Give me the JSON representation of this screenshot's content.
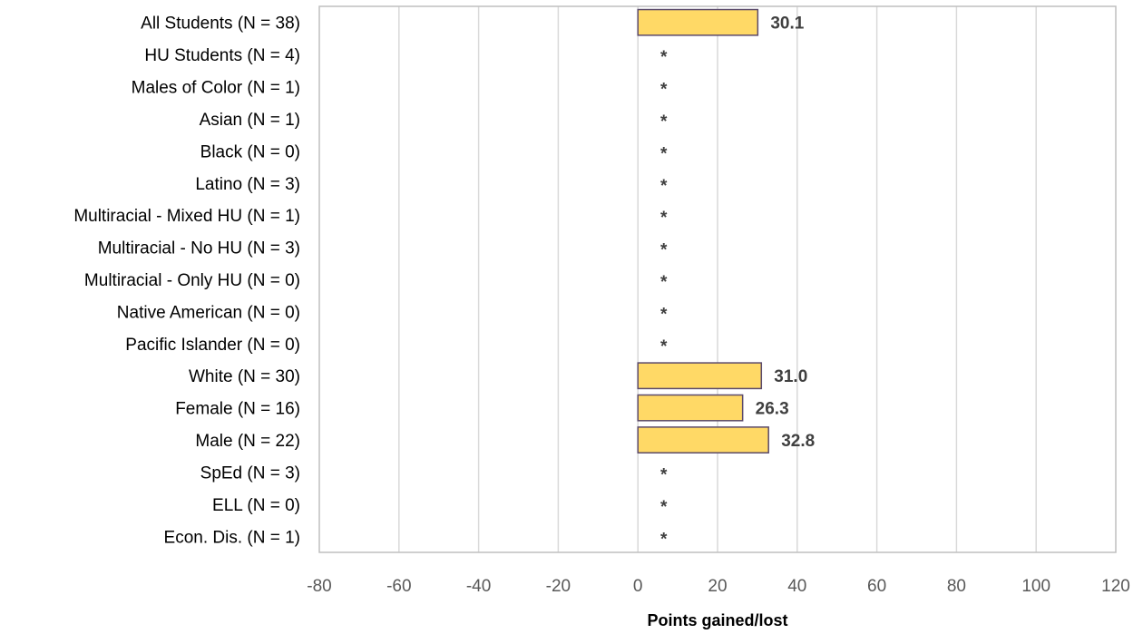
{
  "chart_data": {
    "type": "bar",
    "orientation": "horizontal",
    "categories": [
      "All Students (N = 38)",
      "HU Students (N = 4)",
      "Males of Color (N = 1)",
      "Asian (N = 1)",
      "Black (N = 0)",
      "Latino (N = 3)",
      "Multiracial - Mixed HU (N = 1)",
      "Multiracial - No HU (N = 3)",
      "Multiracial - Only HU (N = 0)",
      "Native American (N = 0)",
      "Pacific Islander (N = 0)",
      "White (N = 30)",
      "Female (N = 16)",
      "Male (N = 22)",
      "SpEd (N = 3)",
      "ELL (N = 0)",
      "Econ. Dis. (N = 1)"
    ],
    "values": [
      30.1,
      null,
      null,
      null,
      null,
      null,
      null,
      null,
      null,
      null,
      null,
      31.0,
      26.3,
      32.8,
      null,
      null,
      null
    ],
    "data_labels": [
      "30.1",
      "*",
      "*",
      "*",
      "*",
      "*",
      "*",
      "*",
      "*",
      "*",
      "*",
      "31.0",
      "26.3",
      "32.8",
      "*",
      "*",
      "*"
    ],
    "xlabel": "Points gained/lost",
    "ylabel": "",
    "title": "",
    "xlim": [
      -80,
      120
    ],
    "xticks": [
      "-80",
      "-60",
      "-40",
      "-20",
      "0",
      "20",
      "40",
      "60",
      "80",
      "100",
      "120"
    ],
    "grid": "vertical",
    "legend": "none",
    "colors": {
      "bar_fill": "#FFD966",
      "bar_stroke": "#5B4A6B",
      "label_text": "#404040",
      "axis_text": "#595959",
      "grid": "#D9D9D9",
      "frame": "#BFBFBF"
    }
  }
}
